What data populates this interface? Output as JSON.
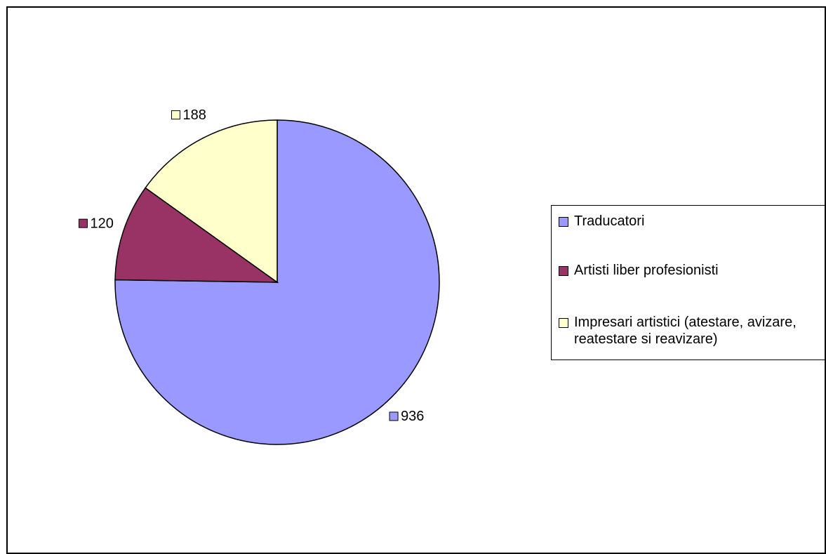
{
  "chart_data": {
    "type": "pie",
    "categories": [
      "Traducatori",
      "Artisti liber profesionisti",
      "Impresari artistici (atestare, avizare, reatestare si reavizare)"
    ],
    "values": [
      936,
      120,
      188
    ],
    "colors": [
      "#9999ff",
      "#993366",
      "#ffffcc"
    ],
    "legend": "right"
  }
}
